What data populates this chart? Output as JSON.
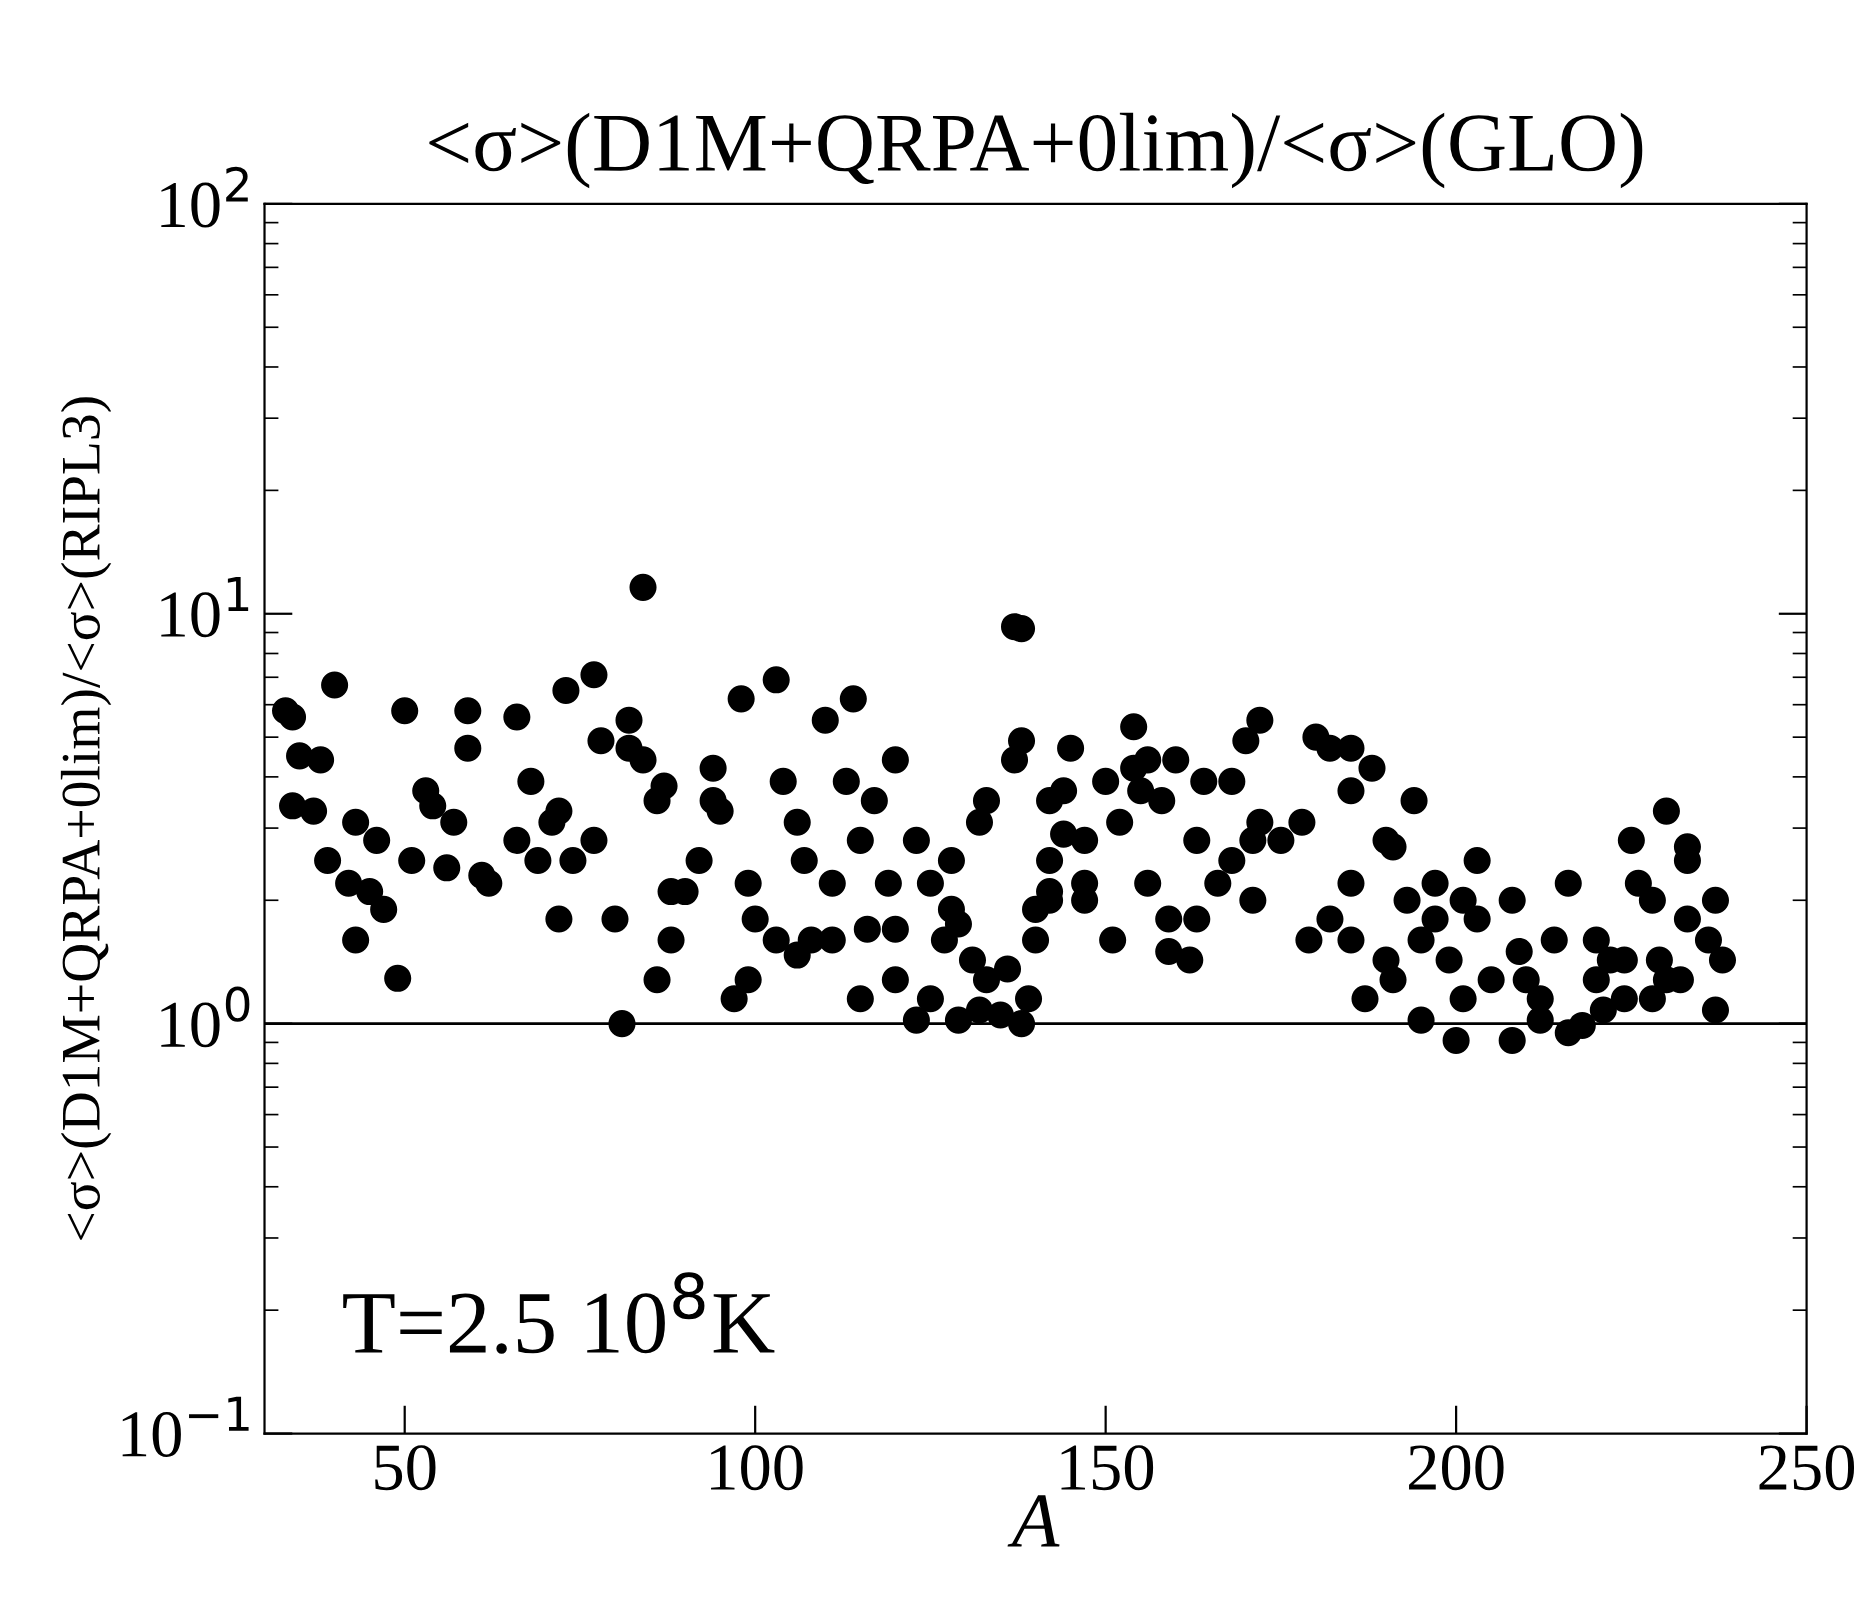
{
  "chart_data": {
    "type": "scatter",
    "title": "<σ>(D1M+QRPA+0lim)/<σ>(GLO)",
    "xlabel": "A",
    "ylabel": "<σ>(D1M+QRPA+0lim)/<σ>(RIPL3)",
    "annotations": [
      "T=2.5 10$^{8}$K"
    ],
    "log": "y",
    "grid": false,
    "marker": "circle",
    "legend": false,
    "xlim": [
      30,
      250
    ],
    "xticks": [
      50,
      100,
      150,
      200,
      250
    ],
    "ylim": [
      0.1,
      100
    ],
    "yticks": [
      {
        "value": 0.1,
        "label": "10$^{−1}$"
      },
      {
        "value": 1,
        "label": "10$^{0}$"
      },
      {
        "value": 10,
        "label": "10$^{1}$"
      },
      {
        "value": 100,
        "label": "10$^{2}$"
      }
    ],
    "ref_lines": [
      {
        "axis": "y",
        "value": 1,
        "color": "#000000"
      }
    ],
    "series": [
      {
        "color": "#000000",
        "x": [
          33,
          34,
          35,
          34,
          37,
          38,
          40,
          39,
          42,
          45,
          43,
          47,
          49,
          50,
          51,
          53,
          54,
          56,
          57,
          59,
          59,
          61,
          62,
          66,
          68,
          69,
          71,
          72,
          73,
          74,
          77,
          78,
          80,
          82,
          84,
          86,
          87,
          88,
          88,
          90,
          92,
          94,
          94,
          95,
          97,
          98,
          99,
          100,
          103,
          104,
          106,
          107,
          108,
          110,
          111,
          113,
          114,
          115,
          116,
          117,
          119,
          120,
          123,
          125,
          127,
          128,
          131,
          133,
          136,
          139,
          140,
          142,
          144,
          144,
          145,
          147,
          137,
          138,
          133,
          132,
          128,
          138,
          137,
          142,
          147,
          150,
          152,
          154,
          156,
          158,
          159,
          160,
          163,
          164,
          168,
          171,
          175,
          178,
          182,
          185,
          182,
          190,
          191,
          194,
          197,
          201,
          203,
          203,
          205,
          209,
          212,
          214,
          216,
          220,
          222,
          225,
          226,
          228,
          229,
          230,
          233,
          236,
          237,
          238,
          159,
          163,
          166,
          171,
          179,
          185,
          190,
          197,
          200,
          208,
          212,
          216,
          218,
          221,
          224,
          228,
          232,
          237,
          233,
          230,
          233,
          180,
          185,
          188,
          191,
          195,
          199,
          201,
          187,
          195,
          172,
          156,
          162,
          123,
          125,
          129,
          135,
          138,
          132,
          140,
          142,
          129,
          120,
          115,
          111,
          106,
          103,
          99,
          84,
          82,
          77,
          66,
          72,
          43,
          46,
          86,
          120,
          154,
          155,
          170,
          142,
          172,
          168,
          147,
          151,
          185,
          193,
          208,
          210,
          220,
          224,
          81
        ],
        "values": [
          5.8,
          5.6,
          4.5,
          3.4,
          3.3,
          4.4,
          6.7,
          2.5,
          2.2,
          2.1,
          3.1,
          1.9,
          1.29,
          5.8,
          2.5,
          3.7,
          3.4,
          2.4,
          3.1,
          5.8,
          4.7,
          2.3,
          2.2,
          2.8,
          3.9,
          2.5,
          3.1,
          3.3,
          6.5,
          2.5,
          2.8,
          4.9,
          1.8,
          4.7,
          11.6,
          3.5,
          3.8,
          1.6,
          2.1,
          2.1,
          2.5,
          4.2,
          3.5,
          3.3,
          1.15,
          6.2,
          2.2,
          1.8,
          6.9,
          3.9,
          3.1,
          2.5,
          1.6,
          5.5,
          2.2,
          3.9,
          6.2,
          2.8,
          1.7,
          3.5,
          2.2,
          4.4,
          2.8,
          2.2,
          1.6,
          1.9,
          1.43,
          1.28,
          1.36,
          1.15,
          1.9,
          2.1,
          2.9,
          3.7,
          4.7,
          2.0,
          9.3,
          9.2,
          3.5,
          3.1,
          2.5,
          4.9,
          4.4,
          2.5,
          2.8,
          3.9,
          3.1,
          4.2,
          4.4,
          3.5,
          1.8,
          4.4,
          2.8,
          3.9,
          2.5,
          2.8,
          2.8,
          3.1,
          4.7,
          3.7,
          1.8,
          2.8,
          2.7,
          3.5,
          2.2,
          2.0,
          2.5,
          1.8,
          1.28,
          1.5,
          1.15,
          1.6,
          2.2,
          1.6,
          1.43,
          2.8,
          2.2,
          2.0,
          1.43,
          1.28,
          1.8,
          1.6,
          2.0,
          1.43,
          1.5,
          1.8,
          2.2,
          2.0,
          1.6,
          1.6,
          1.43,
          1.8,
          0.91,
          0.91,
          1.02,
          0.95,
          0.99,
          1.08,
          1.43,
          1.15,
          1.28,
          1.08,
          2.5,
          3.3,
          2.7,
          5.0,
          4.7,
          4.2,
          1.28,
          1.6,
          1.43,
          1.15,
          1.15,
          1.02,
          5.5,
          2.2,
          1.43,
          1.02,
          1.15,
          1.02,
          1.05,
          1.0,
          1.08,
          1.6,
          2.0,
          1.75,
          1.28,
          1.15,
          1.6,
          1.47,
          1.6,
          1.28,
          4.4,
          5.5,
          7.1,
          5.6,
          1.8,
          1.6,
          2.8,
          1.28,
          1.7,
          5.3,
          3.7,
          4.9,
          3.5,
          3.1,
          3.9,
          2.2,
          1.6,
          2.2,
          2.0,
          2.0,
          1.28,
          1.28,
          1.15,
          1.0
        ]
      }
    ]
  }
}
